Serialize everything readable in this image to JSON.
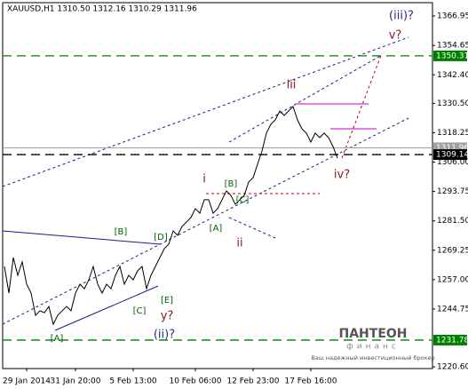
{
  "chart_data": {
    "type": "line",
    "title": "XAUUSD,H1  1310.50 1312.16 1310.29 1311.96",
    "series": [
      {
        "name": "XAUUSD",
        "color": "#000000",
        "values": [
          1262.5,
          1251.4,
          1266.2,
          1258.8,
          1264.4,
          1255.1,
          1251.4,
          1242.1,
          1244.0,
          1243.2,
          1245.8,
          1238.4,
          1242.1,
          1244.0,
          1245.8,
          1244.0,
          1251.4,
          1255.1,
          1253.2,
          1256.9,
          1262.5,
          1255.1,
          1251.4,
          1255.1,
          1253.2,
          1258.8,
          1262.5,
          1255.1,
          1258.8,
          1256.9,
          1260.7,
          1262.5,
          1253.2,
          1258.8,
          1262.5,
          1266.2,
          1269.9,
          1271.8,
          1277.3,
          1275.5,
          1279.2,
          1281.0,
          1282.9,
          1286.6,
          1284.7,
          1290.3,
          1290.3,
          1284.7,
          1286.6,
          1290.3,
          1294.0,
          1292.1,
          1288.4,
          1290.3,
          1292.1,
          1297.7,
          1299.5,
          1305.1,
          1310.6,
          1318.1,
          1321.8,
          1323.6,
          1327.3,
          1325.5,
          1327.3,
          1329.2,
          1323.6,
          1319.9,
          1318.1,
          1314.4,
          1318.1,
          1316.2,
          1318.1,
          1316.2,
          1312.5,
          1307.7
        ]
      }
    ],
    "xlim": [
      -0.4,
      96.4
    ],
    "xticks": [
      {
        "value": 5,
        "label": "29 Jan 2014"
      },
      {
        "value": 16,
        "label": "31 Jan 20:00"
      },
      {
        "value": 29,
        "label": "5 Feb 13:00"
      },
      {
        "value": 43,
        "label": "10 Feb 06:00"
      },
      {
        "value": 56,
        "label": "12 Feb 23:00"
      },
      {
        "value": 69,
        "label": "17 Feb 16:00"
      }
    ],
    "ylim": [
      1219.9,
      1372.5
    ],
    "yticks": [
      {
        "value": 1220.6,
        "label": "1220.60"
      },
      1244.75,
      {
        "value": 1257,
        "label": "1257.00"
      },
      1269.25,
      {
        "value": 1281.5,
        "label": "1281.50"
      },
      1293.75,
      {
        "value": 1306,
        "label": "1306.00"
      },
      1318.25,
      {
        "value": 1330.5,
        "label": "1330.50"
      },
      {
        "value": 1342.4,
        "label": "1342.40"
      },
      1354.65,
      1366.95
    ],
    "price_levels": [
      {
        "value": 1350.31,
        "color": "#008000"
      },
      {
        "value": 1311.96,
        "color": "#a0a0a0"
      },
      {
        "value": 1309.14,
        "color": "#000000"
      },
      {
        "value": 1231.78,
        "color": "#008000"
      }
    ],
    "annotations": [
      {
        "text": "(iii)?",
        "color": "#2b2b8c"
      },
      {
        "text": "v?",
        "color": "#8b1a1a"
      },
      {
        "text": "iii",
        "color": "#8b1a1a"
      },
      {
        "text": "i",
        "color": "#8b1a1a"
      },
      {
        "text": "[B]",
        "color": "#006400"
      },
      {
        "text": "[A]",
        "color": "#006400"
      },
      {
        "text": "[C]",
        "color": "#006400"
      },
      {
        "text": "ii",
        "color": "#8b1a1a"
      },
      {
        "text": "iv?",
        "color": "#8b1a1a"
      },
      {
        "text": "[B]",
        "color": "#006400"
      },
      {
        "text": "[D]",
        "color": "#006400"
      },
      {
        "text": "[E]",
        "color": "#006400"
      },
      {
        "text": "[C]",
        "color": "#006400"
      },
      {
        "text": "[A]",
        "color": "#006400"
      },
      {
        "text": "y?",
        "color": "#8b1a1a"
      },
      {
        "text": "(ii)?",
        "color": "#2b2b8c"
      }
    ]
  },
  "logo": {
    "name": "ПАНТЕОН",
    "sub": "финанс",
    "tagline": "Ваш надежный инвестиционный брокер"
  }
}
